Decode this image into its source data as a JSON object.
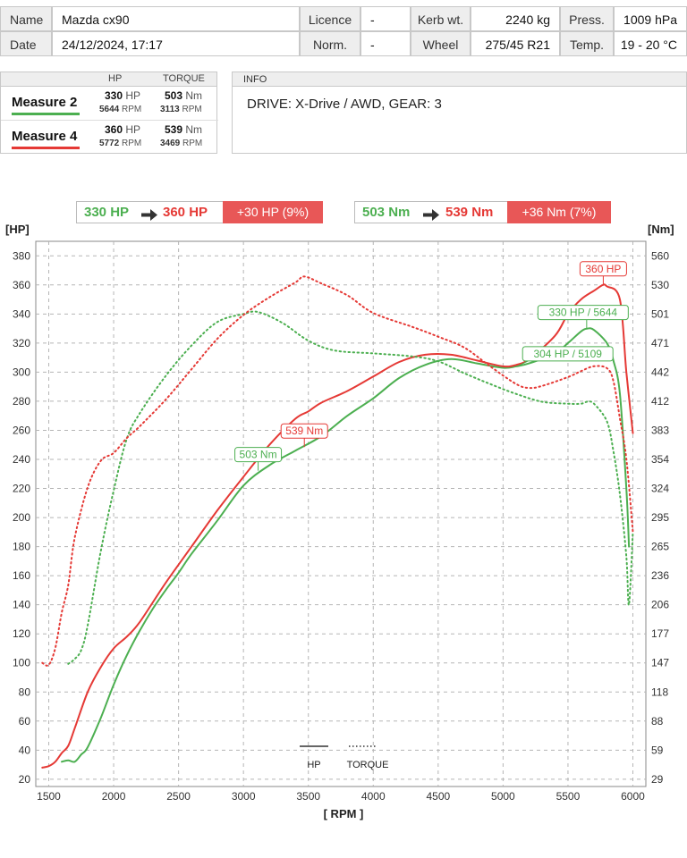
{
  "header": {
    "row1": [
      {
        "label": "Name",
        "value": "Mazda cx90"
      },
      {
        "label": "Licence",
        "value": "-"
      },
      {
        "label": "Kerb wt.",
        "value": "2240 kg"
      },
      {
        "label": "Press.",
        "value": "1009 hPa"
      }
    ],
    "row2": [
      {
        "label": "Date",
        "value": "24/12/2024, 17:17"
      },
      {
        "label": "Norm.",
        "value": "-"
      },
      {
        "label": "Wheel",
        "value": "275/45 R21"
      },
      {
        "label": "Temp.",
        "value": "19 - 20 °C"
      }
    ]
  },
  "measures": {
    "col_hp": "HP",
    "col_torque": "TORQUE",
    "items": [
      {
        "name": "Measure 2",
        "color": "#4caf50",
        "hp": "330",
        "hp_unit": "HP",
        "hp_rpm": "5644",
        "torque": "503",
        "torque_unit": "Nm",
        "torque_rpm": "3113",
        "rpm_unit": "RPM"
      },
      {
        "name": "Measure 4",
        "color": "#e53935",
        "hp": "360",
        "hp_unit": "HP",
        "hp_rpm": "5772",
        "torque": "539",
        "torque_unit": "Nm",
        "torque_rpm": "3469",
        "rpm_unit": "RPM"
      }
    ]
  },
  "info": {
    "title": "INFO",
    "text": "DRIVE: X-Drive / AWD,  GEAR: 3"
  },
  "comparison": {
    "hp": {
      "from": "330 HP",
      "to": "360 HP",
      "diff": "+30 HP  (9%)"
    },
    "torque": {
      "from": "503 Nm",
      "to": "539 Nm",
      "diff": "+36 Nm  (7%)"
    }
  },
  "colors": {
    "measure2": "#4caf50",
    "measure4": "#e53935",
    "diff_bg": "#e85757"
  },
  "chart_data": {
    "type": "line",
    "xlabel": "[ RPM ]",
    "ylabel_left": "[HP]",
    "ylabel_right": "[Nm]",
    "xlim": [
      1400,
      6100
    ],
    "ylim_left": [
      15,
      390
    ],
    "x_ticks": [
      1500,
      2000,
      2500,
      3000,
      3500,
      4000,
      4500,
      5000,
      5500,
      6000
    ],
    "y_ticks_left": [
      20,
      40,
      60,
      80,
      100,
      120,
      140,
      160,
      180,
      200,
      220,
      240,
      260,
      280,
      300,
      320,
      340,
      360,
      380
    ],
    "y_ticks_right": [
      "29",
      "59",
      "88",
      "118",
      "147",
      "177",
      "206",
      "236",
      "265",
      "295",
      "324",
      "354",
      "383",
      "412",
      "442",
      "471",
      "501",
      "530",
      "560"
    ],
    "grid": true,
    "legend": {
      "hp_label": "HP",
      "torque_label": "TORQUE",
      "placement": "bottom-center"
    },
    "annotations": [
      {
        "text": "539 Nm",
        "series": "Measure 4 TORQUE",
        "x": 3469,
        "y": 366
      },
      {
        "text": "503 Nm",
        "series": "Measure 2 TORQUE",
        "x": 3113,
        "y": 342
      },
      {
        "text": "360 HP",
        "series": "Measure 4 HP",
        "x": 5772,
        "y": 360
      },
      {
        "text": "330 HP / 5644",
        "series": "Measure 2 HP",
        "x": 5644,
        "y": 330
      },
      {
        "text": "304 HP / 5109",
        "series": "Measure 2 HP",
        "x": 5109,
        "y": 304
      }
    ],
    "series": [
      {
        "name": "Measure 2",
        "kind": "HP",
        "color": "#4caf50",
        "style": "solid",
        "x": [
          1600,
          1650,
          1700,
          1750,
          1800,
          1900,
          2000,
          2100,
          2200,
          2300,
          2400,
          2500,
          2600,
          2800,
          3000,
          3200,
          3400,
          3600,
          3800,
          4000,
          4200,
          4400,
          4600,
          4800,
          5000,
          5100,
          5200,
          5400,
          5500,
          5600,
          5650,
          5700,
          5800,
          5850,
          5900,
          5950,
          5970
        ],
        "y": [
          32,
          33,
          32,
          37,
          42,
          62,
          85,
          105,
          122,
          137,
          150,
          162,
          175,
          198,
          222,
          236,
          246,
          256,
          270,
          282,
          296,
          305,
          309,
          306,
          303,
          304,
          306,
          313,
          320,
          328,
          330,
          329,
          320,
          308,
          285,
          220,
          180
        ]
      },
      {
        "name": "Measure 4",
        "kind": "HP",
        "color": "#e53935",
        "style": "solid",
        "x": [
          1450,
          1500,
          1550,
          1600,
          1650,
          1700,
          1800,
          1900,
          2000,
          2100,
          2200,
          2400,
          2600,
          2800,
          3000,
          3200,
          3400,
          3500,
          3600,
          3800,
          4000,
          4200,
          4400,
          4600,
          4800,
          5000,
          5100,
          5200,
          5400,
          5500,
          5600,
          5700,
          5770,
          5800,
          5900,
          5950,
          6000
        ],
        "y": [
          28,
          29,
          32,
          38,
          43,
          55,
          80,
          97,
          110,
          118,
          128,
          155,
          180,
          205,
          228,
          250,
          268,
          273,
          279,
          287,
          297,
          307,
          312,
          312,
          308,
          304,
          305,
          309,
          325,
          340,
          350,
          356,
          360,
          359,
          350,
          300,
          258
        ]
      },
      {
        "name": "Measure 2",
        "kind": "TORQUE",
        "color": "#4caf50",
        "style": "dotted",
        "x": [
          1650,
          1700,
          1750,
          1800,
          1900,
          2000,
          2100,
          2200,
          2400,
          2600,
          2800,
          3000,
          3113,
          3300,
          3500,
          3700,
          4000,
          4300,
          4500,
          4700,
          4900,
          5100,
          5300,
          5500,
          5600,
          5650,
          5700,
          5800,
          5850,
          5900,
          5950,
          5970,
          6000
        ],
        "y": [
          146,
          151,
          160,
          185,
          260,
          322,
          374,
          400,
          438,
          469,
          493,
          501,
          503,
          492,
          474,
          464,
          461,
          458,
          453,
          441,
          430,
          420,
          412,
          410,
          410,
          412,
          410,
          392,
          362,
          318,
          255,
          206,
          280
        ]
      },
      {
        "name": "Measure 4",
        "kind": "TORQUE",
        "color": "#e53935",
        "style": "dotted",
        "x": [
          1450,
          1500,
          1550,
          1600,
          1650,
          1700,
          1800,
          1900,
          2000,
          2100,
          2200,
          2400,
          2600,
          2800,
          3000,
          3200,
          3400,
          3469,
          3600,
          3800,
          4000,
          4300,
          4500,
          4700,
          4900,
          5100,
          5200,
          5300,
          5500,
          5600,
          5700,
          5800,
          5850,
          5900,
          5950,
          6000
        ],
        "y": [
          147,
          145,
          162,
          198,
          226,
          274,
          325,
          352,
          360,
          375,
          387,
          414,
          445,
          476,
          500,
          518,
          533,
          539,
          532,
          520,
          502,
          488,
          478,
          467,
          448,
          430,
          426,
          428,
          437,
          443,
          448,
          446,
          433,
          395,
          354,
          280
        ]
      }
    ]
  }
}
